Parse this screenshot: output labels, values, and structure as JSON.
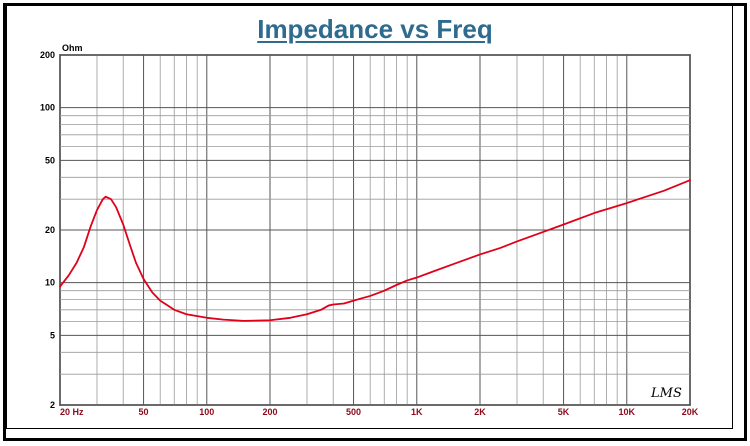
{
  "chart_data": {
    "type": "line",
    "title": "Impedance vs Freq",
    "ylabel": "Ohm",
    "xlabel": "",
    "x_scale": "log",
    "y_scale": "log",
    "xlim": [
      20,
      20000
    ],
    "ylim": [
      2,
      200
    ],
    "x_ticks": [
      {
        "value": 20,
        "label": "20  Hz"
      },
      {
        "value": 50,
        "label": "50"
      },
      {
        "value": 100,
        "label": "100"
      },
      {
        "value": 200,
        "label": "200"
      },
      {
        "value": 500,
        "label": "500"
      },
      {
        "value": 1000,
        "label": "1K"
      },
      {
        "value": 2000,
        "label": "2K"
      },
      {
        "value": 5000,
        "label": "5K"
      },
      {
        "value": 10000,
        "label": "10K"
      },
      {
        "value": 20000,
        "label": "20K"
      }
    ],
    "y_ticks": [
      {
        "value": 2,
        "label": "2"
      },
      {
        "value": 5,
        "label": "5"
      },
      {
        "value": 10,
        "label": "10"
      },
      {
        "value": 20,
        "label": "20"
      },
      {
        "value": 50,
        "label": "50"
      },
      {
        "value": 100,
        "label": "100"
      },
      {
        "value": 200,
        "label": "200"
      }
    ],
    "grid": true,
    "series": [
      {
        "color": "#e0001a",
        "points": [
          [
            20,
            9.5
          ],
          [
            22,
            11.0
          ],
          [
            24,
            13.0
          ],
          [
            26,
            16.0
          ],
          [
            28,
            21.0
          ],
          [
            30,
            26.0
          ],
          [
            32,
            30.0
          ],
          [
            33,
            31.0
          ],
          [
            35,
            30.0
          ],
          [
            37,
            27.0
          ],
          [
            40,
            21.5
          ],
          [
            43,
            16.5
          ],
          [
            46,
            13.0
          ],
          [
            50,
            10.5
          ],
          [
            55,
            8.8
          ],
          [
            60,
            7.9
          ],
          [
            70,
            7.0
          ],
          [
            80,
            6.6
          ],
          [
            100,
            6.3
          ],
          [
            120,
            6.15
          ],
          [
            150,
            6.05
          ],
          [
            200,
            6.1
          ],
          [
            250,
            6.3
          ],
          [
            300,
            6.6
          ],
          [
            350,
            7.0
          ],
          [
            380,
            7.4
          ],
          [
            400,
            7.5
          ],
          [
            450,
            7.6
          ],
          [
            500,
            7.9
          ],
          [
            600,
            8.4
          ],
          [
            700,
            9.0
          ],
          [
            800,
            9.7
          ],
          [
            900,
            10.3
          ],
          [
            1000,
            10.7
          ],
          [
            1200,
            11.6
          ],
          [
            1500,
            12.8
          ],
          [
            2000,
            14.5
          ],
          [
            2500,
            15.8
          ],
          [
            3000,
            17.2
          ],
          [
            4000,
            19.5
          ],
          [
            5000,
            21.5
          ],
          [
            7000,
            25.0
          ],
          [
            10000,
            28.5
          ],
          [
            15000,
            33.5
          ],
          [
            20000,
            38.5
          ]
        ]
      }
    ],
    "signature": "LMS"
  },
  "colors": {
    "title": "#2e6b8e",
    "curve": "#e0001a",
    "x_ticks": "#8b0a1a"
  }
}
